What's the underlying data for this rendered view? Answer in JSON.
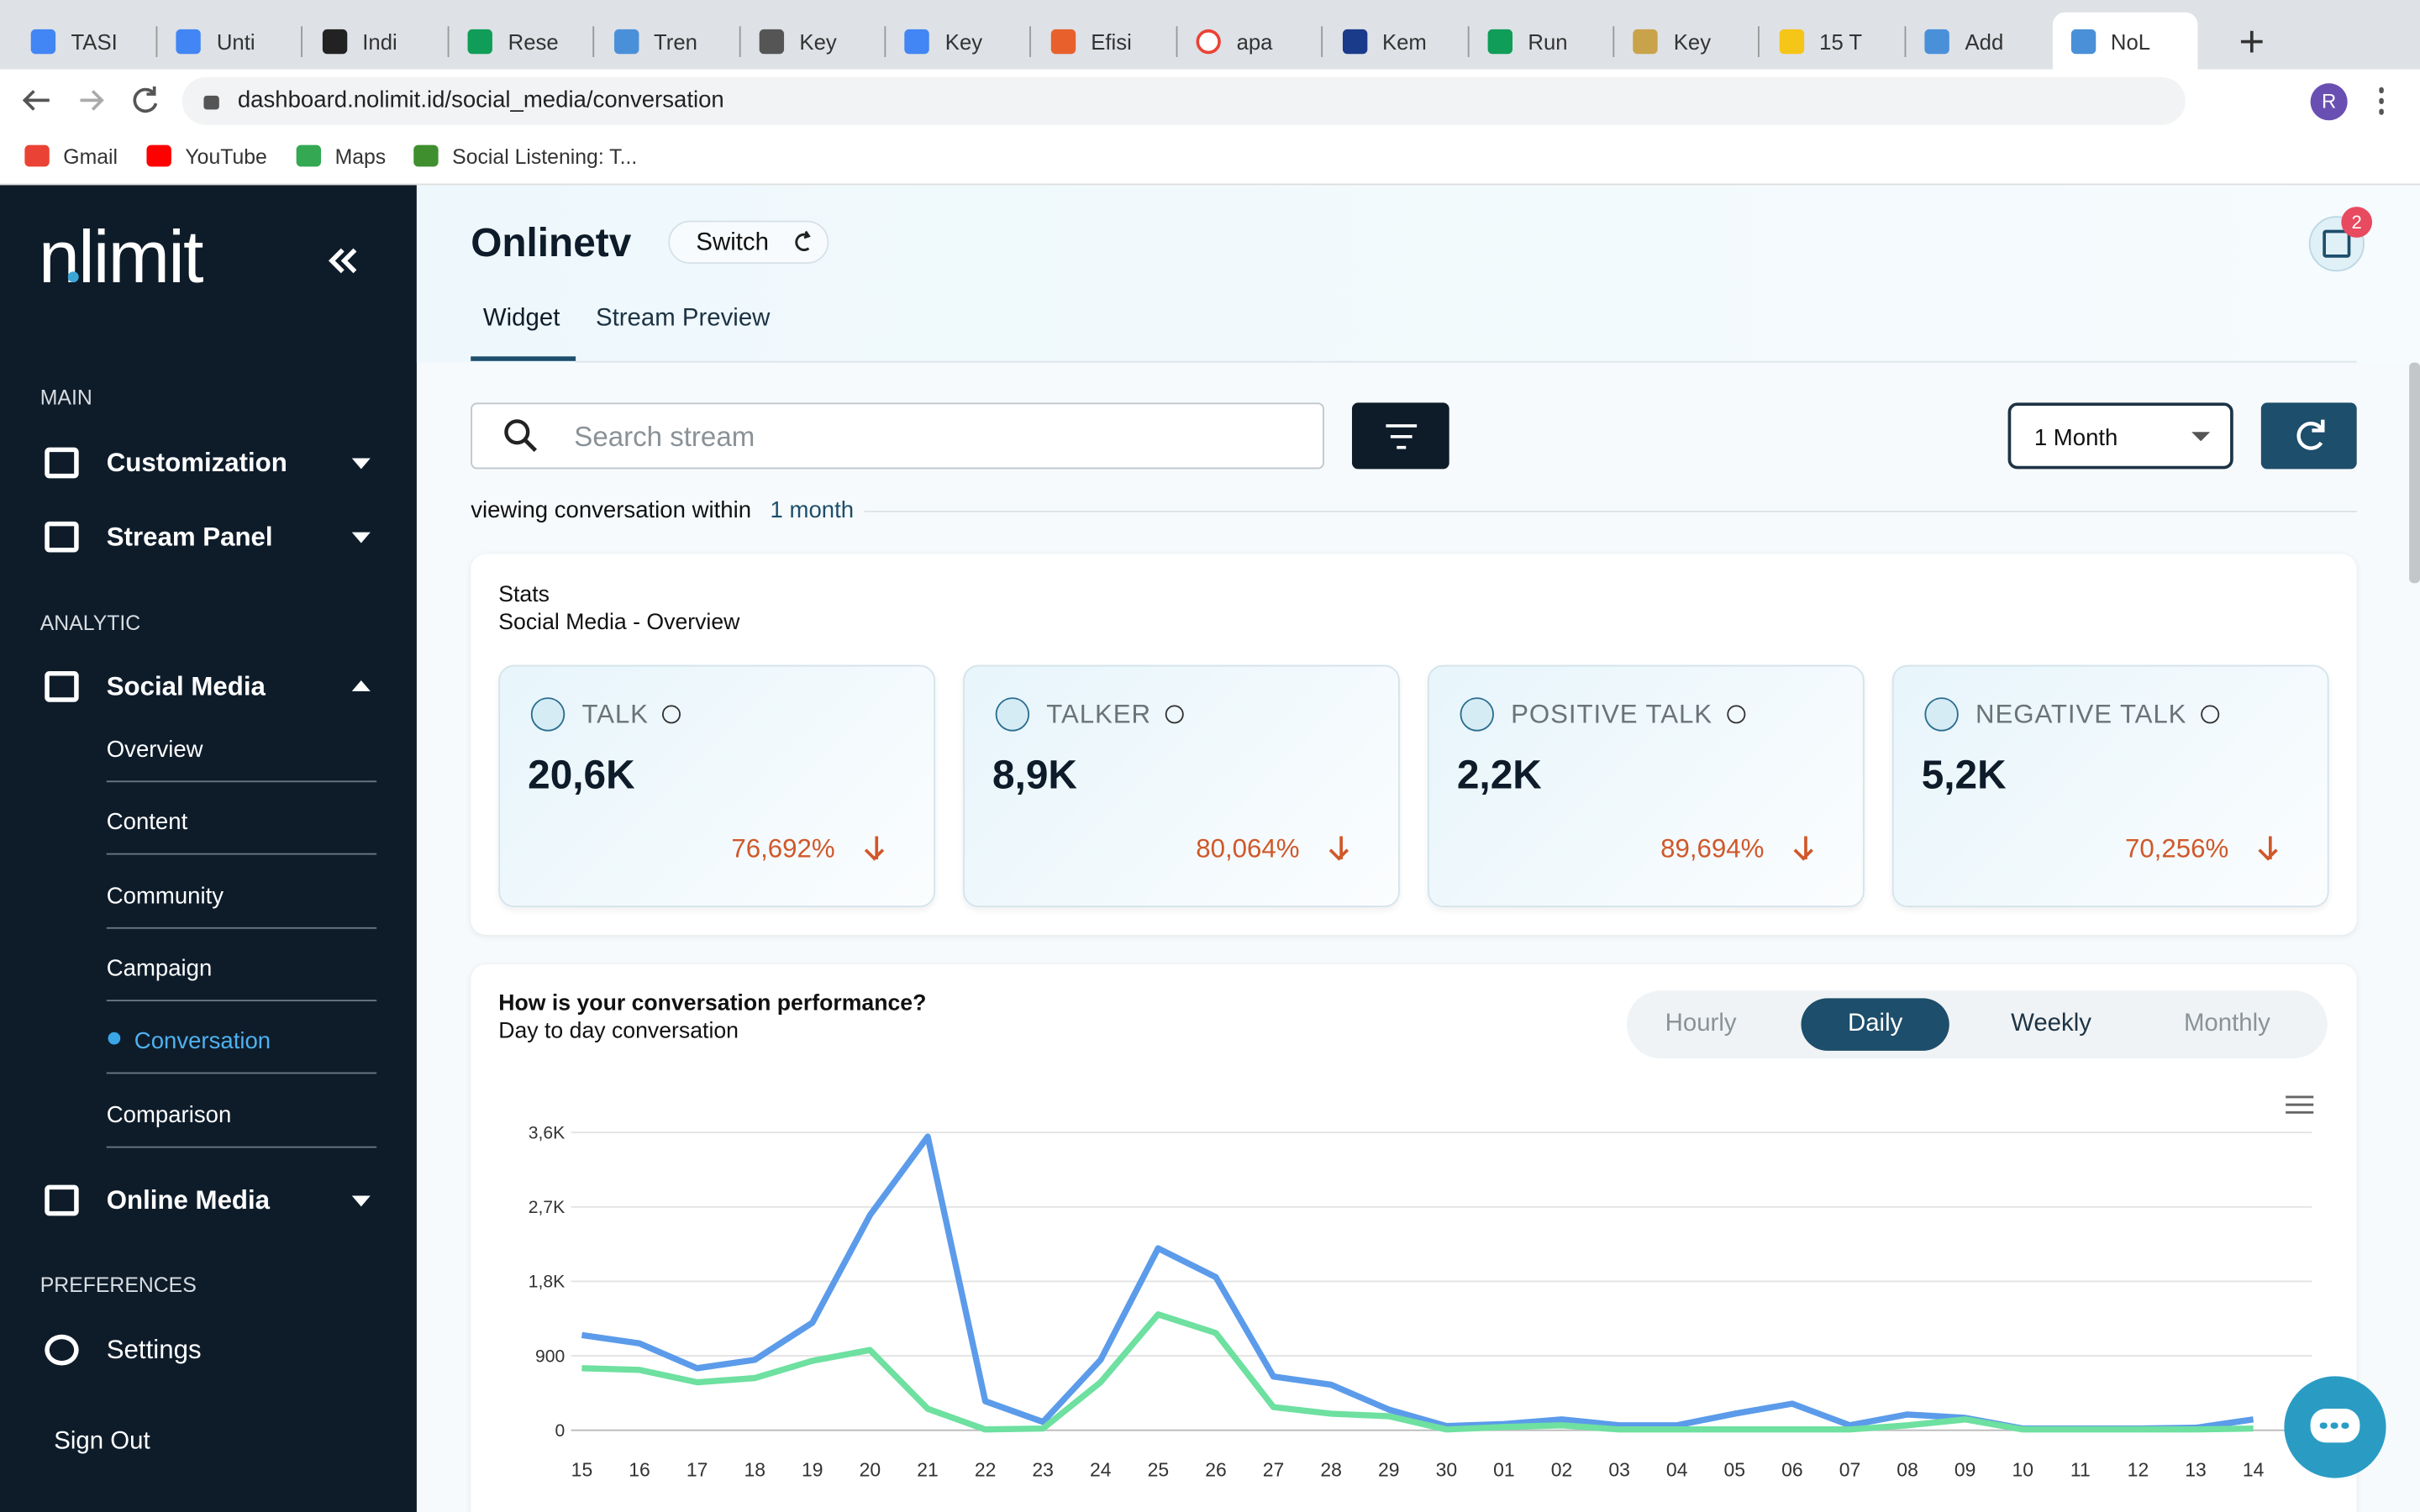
{
  "browser": {
    "tabs": [
      "TASI",
      "Unti",
      "Indi",
      "Rese",
      "Tren",
      "Key",
      "Key",
      "Efisi",
      "apa",
      "Kem",
      "Run",
      "Key",
      "15 T",
      "Add",
      "NoL"
    ],
    "url": "dashboard.nolimit.id/social_media/conversation",
    "bookmarks": [
      "Gmail",
      "YouTube",
      "Maps",
      "Social Listening: T..."
    ],
    "profile": "R"
  },
  "sidebar": {
    "logo": "nlimit",
    "sections": [
      {
        "heading": "MAIN",
        "items": [
          {
            "label": "Customization"
          },
          {
            "label": "Stream Panel"
          }
        ]
      },
      {
        "heading": "ANALYTIC",
        "items": [
          {
            "label": "Social Media",
            "sub": [
              "Overview",
              "Content",
              "Community",
              "Campaign",
              "Conversation",
              "Comparison"
            ]
          },
          {
            "label": "Online Media"
          }
        ]
      },
      {
        "heading": "PREFERENCES",
        "items": [
          {
            "label": "Settings"
          }
        ]
      }
    ],
    "sign_out": "Sign Out"
  },
  "header": {
    "title": "Onlinetv",
    "switch": "Switch",
    "tabs": [
      "Widget",
      "Stream Preview"
    ],
    "notifications": "2"
  },
  "toolbar": {
    "search_placeholder": "Search stream",
    "period": "1 Month",
    "viewing": "viewing conversation within",
    "viewing_period": "1 month"
  },
  "stats": {
    "title": "Stats",
    "subtitle": "Social Media - Overview",
    "cards": [
      {
        "label": "TALK",
        "value": "20,6K",
        "change": "76,692%"
      },
      {
        "label": "TALKER",
        "value": "8,9K",
        "change": "80,064%"
      },
      {
        "label": "POSITIVE TALK",
        "value": "2,2K",
        "change": "89,694%"
      },
      {
        "label": "NEGATIVE TALK",
        "value": "5,2K",
        "change": "70,256%"
      }
    ]
  },
  "performance": {
    "title": "How is your conversation performance?",
    "subtitle": "Day to day conversation",
    "granularity": [
      "Hourly",
      "Daily",
      "Weekly",
      "Monthly"
    ],
    "selected": 1
  },
  "chart_data": {
    "type": "line",
    "categories": [
      "15",
      "16",
      "17",
      "18",
      "19",
      "20",
      "21",
      "22",
      "23",
      "24",
      "25",
      "26",
      "27",
      "28",
      "29",
      "30",
      "01",
      "02",
      "03",
      "04",
      "05",
      "06",
      "07",
      "08",
      "09",
      "10",
      "11",
      "12",
      "13",
      "14"
    ],
    "series": [
      {
        "color": "#5b9bea",
        "values": [
          1150,
          1050,
          750,
          850,
          1300,
          2600,
          3550,
          350,
          100,
          850,
          2200,
          1850,
          650,
          550,
          250,
          50,
          75,
          130,
          60,
          60,
          200,
          320,
          60,
          190,
          150,
          20,
          20,
          20,
          30,
          130
        ]
      },
      {
        "color": "#6ee0a0",
        "values": [
          750,
          730,
          580,
          630,
          840,
          970,
          260,
          10,
          20,
          580,
          1400,
          1175,
          280,
          200,
          170,
          10,
          40,
          60,
          10,
          10,
          10,
          10,
          10,
          60,
          130,
          10,
          10,
          10,
          10,
          20
        ]
      }
    ],
    "ylim": [
      0,
      3600
    ],
    "yticks": [
      0,
      900,
      {
        "value": 1800,
        "label": "1,8K"
      },
      {
        "value": 2700,
        "label": "2,7K"
      },
      {
        "value": 3600,
        "label": "3,6K"
      }
    ],
    "grid": true
  }
}
